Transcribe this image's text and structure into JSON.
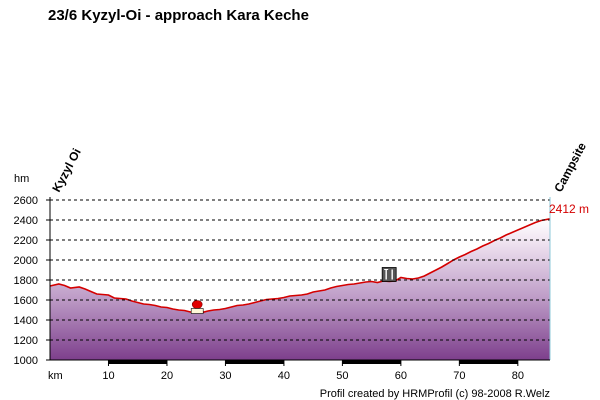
{
  "chart_data": {
    "type": "area",
    "title": "23/6 Kyzyl-Oi - approach Kara Keche",
    "xlabel": "km",
    "ylabel": "hm",
    "xlim": [
      0,
      85.5
    ],
    "ylim": [
      1000,
      2600
    ],
    "x_ticks": [
      10,
      20,
      30,
      40,
      50,
      60,
      70,
      80
    ],
    "y_ticks": [
      1000,
      1200,
      1400,
      1600,
      1800,
      2000,
      2200,
      2400,
      2600
    ],
    "grid": true,
    "series": [
      {
        "x": [
          0,
          1.5,
          2.5,
          3.5,
          5,
          6,
          7,
          8,
          9,
          10,
          11,
          12,
          13,
          14,
          15,
          16,
          17,
          18,
          19,
          20,
          21,
          22,
          23,
          24,
          25,
          26,
          27,
          28,
          29,
          30,
          31,
          32,
          33,
          34,
          35,
          36,
          37,
          38,
          39,
          40,
          41,
          42,
          43,
          44,
          45,
          46,
          47,
          48,
          49,
          50,
          51,
          52,
          53,
          54,
          55,
          56,
          57,
          58,
          59,
          60,
          61,
          62,
          63,
          64,
          65,
          66,
          67,
          68,
          69,
          70,
          71,
          72,
          73,
          74,
          75,
          76,
          77,
          78,
          79,
          80,
          81,
          82,
          83,
          84,
          85.5
        ],
        "y": [
          1740,
          1760,
          1745,
          1720,
          1730,
          1710,
          1685,
          1660,
          1655,
          1650,
          1620,
          1615,
          1610,
          1590,
          1575,
          1560,
          1555,
          1545,
          1530,
          1525,
          1510,
          1500,
          1495,
          1480,
          1485,
          1475,
          1490,
          1500,
          1505,
          1515,
          1530,
          1545,
          1550,
          1560,
          1575,
          1590,
          1605,
          1610,
          1615,
          1625,
          1640,
          1645,
          1650,
          1660,
          1680,
          1690,
          1700,
          1720,
          1735,
          1745,
          1755,
          1760,
          1770,
          1780,
          1785,
          1775,
          1790,
          1785,
          1790,
          1825,
          1815,
          1810,
          1820,
          1840,
          1870,
          1900,
          1930,
          1965,
          2000,
          2030,
          2055,
          2085,
          2110,
          2140,
          2165,
          2195,
          2220,
          2250,
          2275,
          2300,
          2325,
          2350,
          2375,
          2395,
          2412
        ]
      }
    ],
    "end_label": "2412 m",
    "waypoints": [
      {
        "label": "Kyzyl Oi",
        "position": "start"
      },
      {
        "label": "Campsite",
        "position": "end"
      }
    ],
    "markers": [
      {
        "icon": "red-flag-icon",
        "x": 25
      },
      {
        "icon": "restaurant-icon",
        "x": 58
      }
    ],
    "footer": "Profil created by HRMProfil (c) 98-2008 R.Welz",
    "colors": {
      "line": "#d40000",
      "fill_top": "#ffffff",
      "fill_bottom": "#8a4a96",
      "grid": "#000000",
      "accent": "#d40000"
    }
  }
}
